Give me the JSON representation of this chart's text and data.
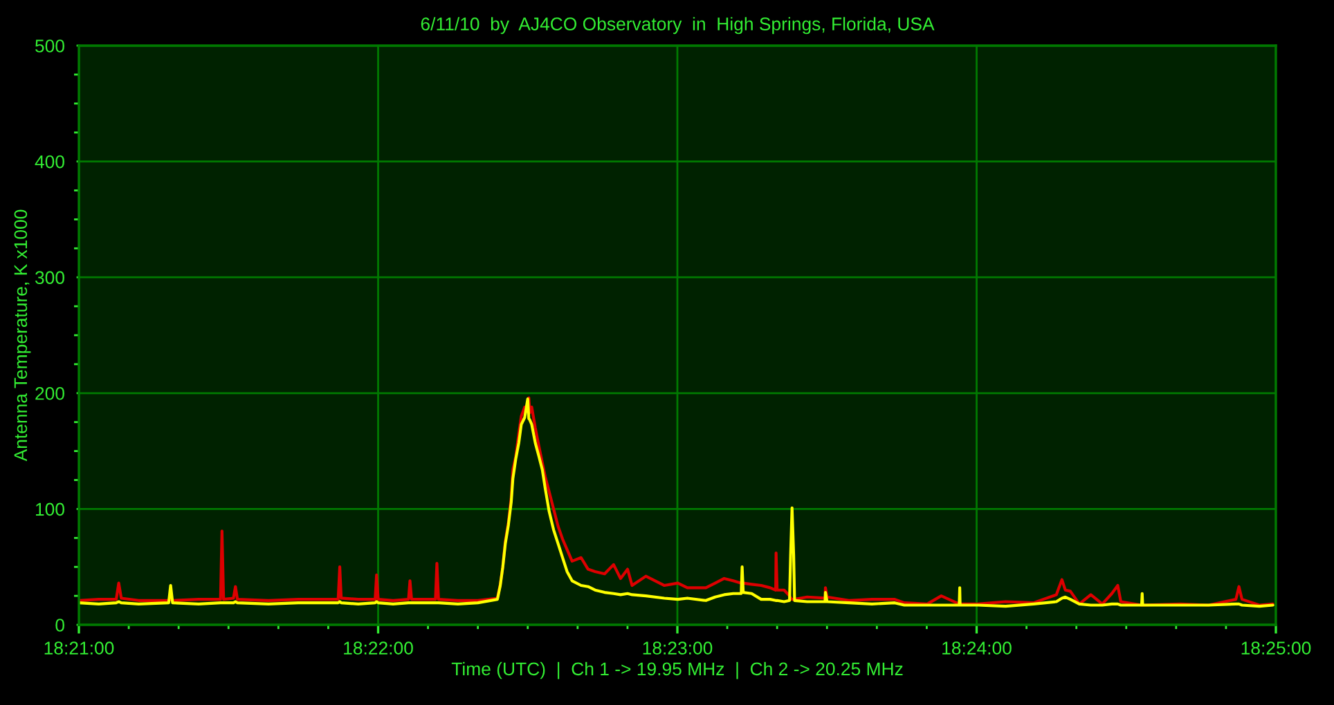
{
  "chart_data": {
    "type": "line",
    "title": "6/11/10  by  AJ4CO Observatory  in  High Springs, Florida, USA",
    "xlabel": "Time (UTC)  |  Ch 1 -> 19.95 MHz  |  Ch 2 -> 20.25 MHz",
    "ylabel": "Antenna Temperature, K x1000",
    "x": [
      18.35,
      18.35111,
      18.35208,
      18.35222,
      18.35236,
      18.35333,
      18.355,
      18.35511,
      18.35522,
      18.35667,
      18.35789,
      18.35797,
      18.35806,
      18.35861,
      18.35872,
      18.35883,
      18.36056,
      18.36222,
      18.36444,
      18.36453,
      18.36461,
      18.36556,
      18.3665,
      18.36658,
      18.36667,
      18.3675,
      18.36836,
      18.36844,
      18.36853,
      18.36986,
      18.36994,
      18.37003,
      18.37111,
      18.37222,
      18.37331,
      18.37347,
      18.37361,
      18.37375,
      18.37392,
      18.37408,
      18.37417,
      18.37433,
      18.3745,
      18.37464,
      18.37483,
      18.375,
      18.37506,
      18.37511,
      18.37522,
      18.37542,
      18.37561,
      18.37581,
      18.37597,
      18.37619,
      18.37644,
      18.37669,
      18.37694,
      18.37719,
      18.37747,
      18.37797,
      18.37836,
      18.37875,
      18.37928,
      18.37978,
      18.38017,
      18.38056,
      18.38081,
      18.38158,
      18.38261,
      18.38336,
      18.38389,
      18.38492,
      18.38544,
      18.38594,
      18.38644,
      18.38689,
      18.38694,
      18.387,
      18.38747,
      18.388,
      18.3885,
      18.38881,
      18.38883,
      18.38889,
      18.38928,
      18.38958,
      18.38964,
      18.38972,
      18.38981,
      18.38986,
      18.39056,
      18.39156,
      18.39158,
      18.39167,
      18.39289,
      18.39417,
      18.39544,
      18.39597,
      18.39725,
      18.39803,
      18.39903,
      18.39906,
      18.39908,
      18.40008,
      18.40161,
      18.40317,
      18.40444,
      18.40475,
      18.40494,
      18.40522,
      18.40572,
      18.40636,
      18.407,
      18.40753,
      18.40786,
      18.40803,
      18.40919,
      18.40922,
      18.40925,
      18.41136,
      18.41292,
      18.41444,
      18.41461,
      18.41478,
      18.41575,
      18.4165
    ],
    "series": [
      {
        "color": "#dd0000",
        "values": [
          21,
          22,
          22,
          36,
          23,
          21,
          21,
          22,
          21,
          22,
          22,
          81,
          22,
          23,
          33,
          22,
          21,
          22,
          22,
          50,
          23,
          22,
          22,
          43,
          22,
          21,
          22,
          38,
          22,
          22,
          53,
          22,
          21,
          21,
          23,
          35,
          50,
          72,
          88,
          110,
          134,
          145,
          165,
          180,
          188,
          185,
          196,
          183,
          188,
          170,
          155,
          140,
          128,
          115,
          100,
          85,
          74,
          65,
          55,
          58,
          48,
          46,
          44,
          52,
          40,
          48,
          34,
          42,
          34,
          36,
          32,
          32,
          36,
          40,
          38,
          36,
          37,
          36,
          35,
          34,
          32,
          30,
          62,
          30,
          30,
          25,
          23,
          22,
          22,
          22,
          24,
          23,
          32,
          24,
          21,
          22,
          22,
          19,
          18,
          25,
          18,
          18,
          18,
          18,
          20,
          19,
          26,
          39,
          30,
          29,
          18,
          26,
          18,
          27,
          34,
          20,
          17,
          17,
          17,
          18,
          17,
          22,
          33,
          22,
          17,
          18
        ]
      },
      {
        "color": "#ffff00",
        "values": [
          19,
          18,
          19,
          20,
          19,
          18,
          19,
          34,
          19,
          18,
          19,
          19,
          19,
          19,
          20,
          19,
          18,
          19,
          19,
          20,
          19,
          18,
          19,
          20,
          19,
          18,
          19,
          19,
          19,
          19,
          19,
          19,
          18,
          19,
          22,
          34,
          50,
          70,
          86,
          106,
          126,
          143,
          157,
          173,
          179,
          195,
          178,
          177,
          173,
          157,
          146,
          134,
          118,
          98,
          82,
          70,
          58,
          46,
          38,
          34,
          33,
          30,
          28,
          27,
          26,
          27,
          26,
          25,
          23,
          22,
          23,
          21,
          24,
          26,
          27,
          27,
          50,
          28,
          27,
          22,
          22,
          21,
          21,
          21,
          20,
          21,
          60,
          101,
          60,
          21,
          20,
          20,
          28,
          20,
          19,
          18,
          19,
          17,
          17,
          17,
          17,
          32,
          17,
          17,
          16,
          18,
          20,
          23,
          24,
          22,
          18,
          17,
          17,
          18,
          18,
          17,
          17,
          27,
          17,
          17,
          17,
          18,
          18,
          17,
          16,
          17
        ]
      }
    ],
    "xlim": [
      18.35,
      18.416667
    ],
    "xticks": [
      {
        "value": 18.35,
        "label": "18:21:00"
      },
      {
        "value": 18.352778,
        "label": null
      },
      {
        "value": 18.355556,
        "label": null
      },
      {
        "value": 18.358333,
        "label": null
      },
      {
        "value": 18.361111,
        "label": null
      },
      {
        "value": 18.363889,
        "label": null
      },
      {
        "value": 18.366667,
        "label": "18:22:00"
      },
      {
        "value": 18.369444,
        "label": null
      },
      {
        "value": 18.372222,
        "label": null
      },
      {
        "value": 18.375,
        "label": null
      },
      {
        "value": 18.377778,
        "label": null
      },
      {
        "value": 18.380556,
        "label": null
      },
      {
        "value": 18.383333,
        "label": "18:23:00"
      },
      {
        "value": 18.386111,
        "label": null
      },
      {
        "value": 18.388889,
        "label": null
      },
      {
        "value": 18.391667,
        "label": null
      },
      {
        "value": 18.394444,
        "label": null
      },
      {
        "value": 18.397222,
        "label": null
      },
      {
        "value": 18.4,
        "label": "18:24:00"
      },
      {
        "value": 18.402778,
        "label": null
      },
      {
        "value": 18.405556,
        "label": null
      },
      {
        "value": 18.408333,
        "label": null
      },
      {
        "value": 18.411111,
        "label": null
      },
      {
        "value": 18.413889,
        "label": null
      },
      {
        "value": 18.416667,
        "label": "18:25:00"
      }
    ],
    "ylim": [
      0,
      500
    ],
    "yticks": [
      0,
      {
        "value": 25,
        "label": null
      },
      {
        "value": 50,
        "label": null
      },
      {
        "value": 75,
        "label": null
      },
      100,
      {
        "value": 125,
        "label": null
      },
      {
        "value": 150,
        "label": null
      },
      {
        "value": 175,
        "label": null
      },
      200,
      {
        "value": 225,
        "label": null
      },
      {
        "value": 250,
        "label": null
      },
      {
        "value": 275,
        "label": null
      },
      300,
      {
        "value": 325,
        "label": null
      },
      {
        "value": 350,
        "label": null
      },
      {
        "value": 375,
        "label": null
      },
      400,
      {
        "value": 425,
        "label": null
      },
      {
        "value": 450,
        "label": null
      },
      {
        "value": 475,
        "label": null
      },
      500
    ],
    "grid": true
  }
}
